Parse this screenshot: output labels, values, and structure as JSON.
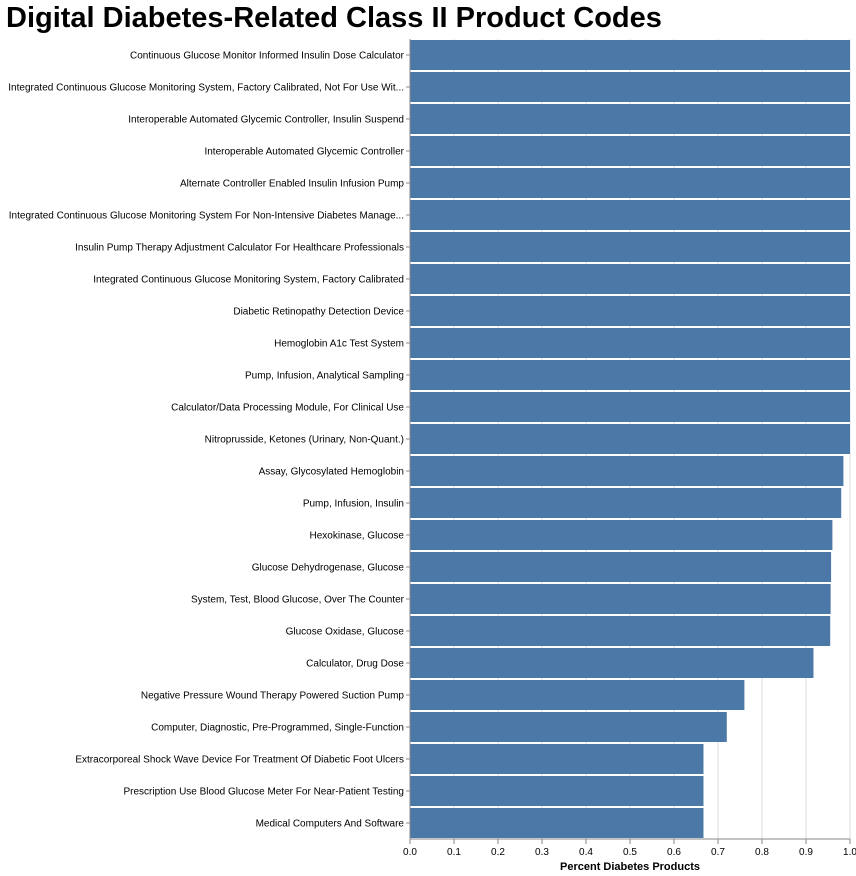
{
  "chart_data": {
    "type": "bar",
    "orientation": "horizontal",
    "title": "Digital Diabetes-Related Class II Product Codes",
    "xlabel": "Percent Diabetes Products",
    "ylabel": "",
    "xlim": [
      0,
      1.0
    ],
    "xticks": [
      "0.0",
      "0.1",
      "0.2",
      "0.3",
      "0.4",
      "0.5",
      "0.6",
      "0.7",
      "0.8",
      "0.9",
      "1.0"
    ],
    "grid": true,
    "bar_color": "#4c78a8",
    "categories": [
      "Continuous Glucose Monitor Informed Insulin Dose Calculator",
      "Integrated Continuous Glucose Monitoring System, Factory Calibrated, Not For Use Wit...",
      "Interoperable Automated Glycemic Controller, Insulin Suspend",
      "Interoperable Automated Glycemic Controller",
      "Alternate Controller Enabled Insulin Infusion Pump",
      "Integrated Continuous Glucose Monitoring System For Non-Intensive Diabetes Manage...",
      "Insulin Pump Therapy Adjustment Calculator For Healthcare Professionals",
      "Integrated Continuous Glucose Monitoring System, Factory Calibrated",
      "Diabetic Retinopathy Detection Device",
      "Hemoglobin A1c Test System",
      "Pump, Infusion, Analytical Sampling",
      "Calculator/Data Processing Module, For Clinical Use",
      "Nitroprusside, Ketones (Urinary, Non-Quant.)",
      "Assay, Glycosylated Hemoglobin",
      "Pump, Infusion, Insulin",
      "Hexokinase, Glucose",
      "Glucose Dehydrogenase, Glucose",
      "System, Test, Blood Glucose, Over The Counter",
      "Glucose Oxidase, Glucose",
      "Calculator, Drug Dose",
      "Negative Pressure Wound Therapy Powered Suction Pump",
      "Computer, Diagnostic, Pre-Programmed, Single-Function",
      "Extracorporeal Shock Wave Device For Treatment Of Diabetic Foot Ulcers",
      "Prescription Use Blood Glucose Meter For Near-Patient Testing",
      "Medical Computers And Software"
    ],
    "values": [
      1.0,
      1.0,
      1.0,
      1.0,
      1.0,
      1.0,
      1.0,
      1.0,
      1.0,
      1.0,
      1.0,
      1.0,
      1.0,
      0.985,
      0.98,
      0.96,
      0.957,
      0.956,
      0.955,
      0.917,
      0.76,
      0.72,
      0.667,
      0.667,
      0.667
    ]
  }
}
